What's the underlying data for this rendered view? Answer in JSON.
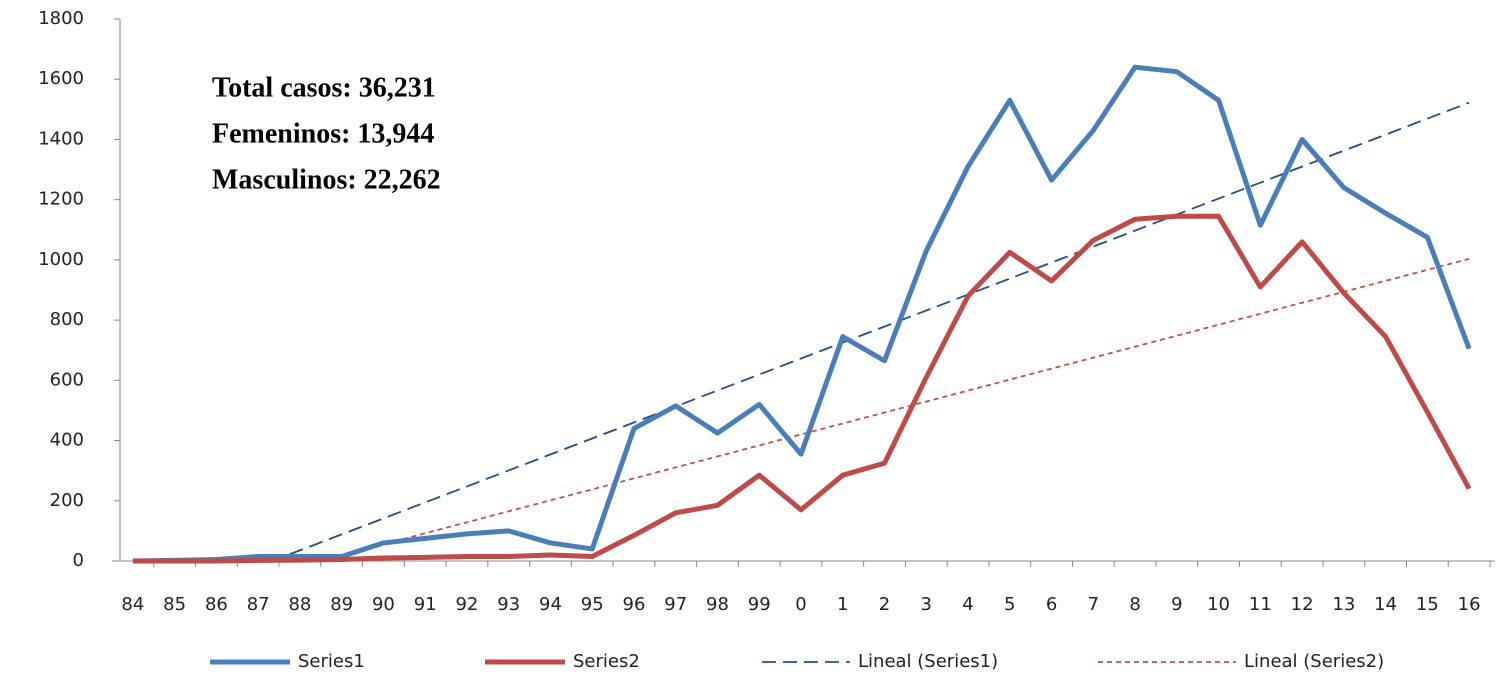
{
  "chart_data": {
    "type": "line",
    "annotations": [
      "Total casos: 36,231",
      "Femeninos: 13,944",
      "Masculinos: 22,262"
    ],
    "categories": [
      "84",
      "85",
      "86",
      "87",
      "88",
      "89",
      "90",
      "91",
      "92",
      "93",
      "94",
      "95",
      "96",
      "97",
      "98",
      "99",
      "0",
      "1",
      "2",
      "3",
      "4",
      "5",
      "6",
      "7",
      "8",
      "9",
      "10",
      "11",
      "12",
      "13",
      "14",
      "15",
      "16"
    ],
    "series": [
      {
        "name": "Series1",
        "color": "#4a7ebb",
        "values": [
          0,
          2,
          5,
          15,
          15,
          15,
          60,
          75,
          90,
          100,
          60,
          40,
          440,
          515,
          425,
          520,
          355,
          745,
          665,
          1030,
          1310,
          1530,
          1265,
          1430,
          1640,
          1625,
          1530,
          1115,
          1400,
          1240,
          1155,
          1075,
          705
        ]
      },
      {
        "name": "Series2",
        "color": "#be4b48",
        "values": [
          0,
          0,
          0,
          2,
          3,
          5,
          10,
          12,
          15,
          15,
          20,
          15,
          85,
          160,
          185,
          285,
          170,
          285,
          325,
          610,
          880,
          1025,
          930,
          1065,
          1135,
          1145,
          1145,
          910,
          1060,
          890,
          745,
          495,
          240
        ]
      }
    ],
    "trendlines": [
      {
        "name": "Lineal (Series1)",
        "color": "#1f4e8c",
        "dash": "14,7"
      },
      {
        "name": "Lineal (Series2)",
        "color": "#c0504d",
        "dash": "5,4"
      }
    ],
    "ylim": [
      0,
      1800
    ],
    "yticks": [
      0,
      200,
      400,
      600,
      800,
      1000,
      1200,
      1400,
      1600,
      1800
    ],
    "grid": false,
    "legend": "bottom"
  }
}
